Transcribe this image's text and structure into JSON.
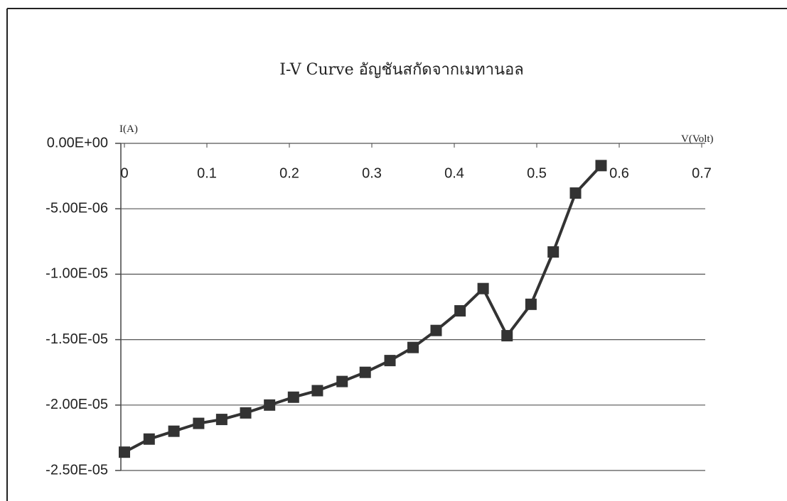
{
  "chart_data": {
    "type": "line",
    "title": "I-V Curve อัญชันสกัดจากเมทานอล",
    "x_label": "V(Volt)",
    "y_label": "I(A)",
    "x": [
      0,
      0.03,
      0.06,
      0.09,
      0.118,
      0.147,
      0.176,
      0.205,
      0.234,
      0.264,
      0.292,
      0.322,
      0.35,
      0.378,
      0.407,
      0.435,
      0.464,
      0.493,
      0.52,
      0.547,
      0.578
    ],
    "series": [
      {
        "name": "I",
        "color": "#333333",
        "values": [
          -2.36e-05,
          -2.26e-05,
          -2.2e-05,
          -2.14e-05,
          -2.11e-05,
          -2.06e-05,
          -2e-05,
          -1.94e-05,
          -1.89e-05,
          -1.82e-05,
          -1.75e-05,
          -1.66e-05,
          -1.56e-05,
          -1.43e-05,
          -1.28e-05,
          -1.11e-05,
          -1.47e-05,
          -1.23e-05,
          -8.3e-06,
          -3.8e-06,
          -1.7e-06
        ]
      }
    ],
    "xlim": [
      0,
      0.7
    ],
    "xticks": [
      0,
      0.1,
      0.2,
      0.3,
      0.4,
      0.5,
      0.6,
      0.7
    ],
    "ylim": [
      -2.5e-05,
      0
    ],
    "yticks": [
      {
        "value": 0,
        "label": "0.00E+00"
      },
      {
        "value": -5e-06,
        "label": "-5.00E-06"
      },
      {
        "value": -1e-05,
        "label": "-1.00E-05"
      },
      {
        "value": -1.5e-05,
        "label": "-1.50E-05"
      },
      {
        "value": -2e-05,
        "label": "-2.00E-05"
      },
      {
        "value": -2.5e-05,
        "label": "-2.50E-05"
      }
    ],
    "grid": true
  }
}
